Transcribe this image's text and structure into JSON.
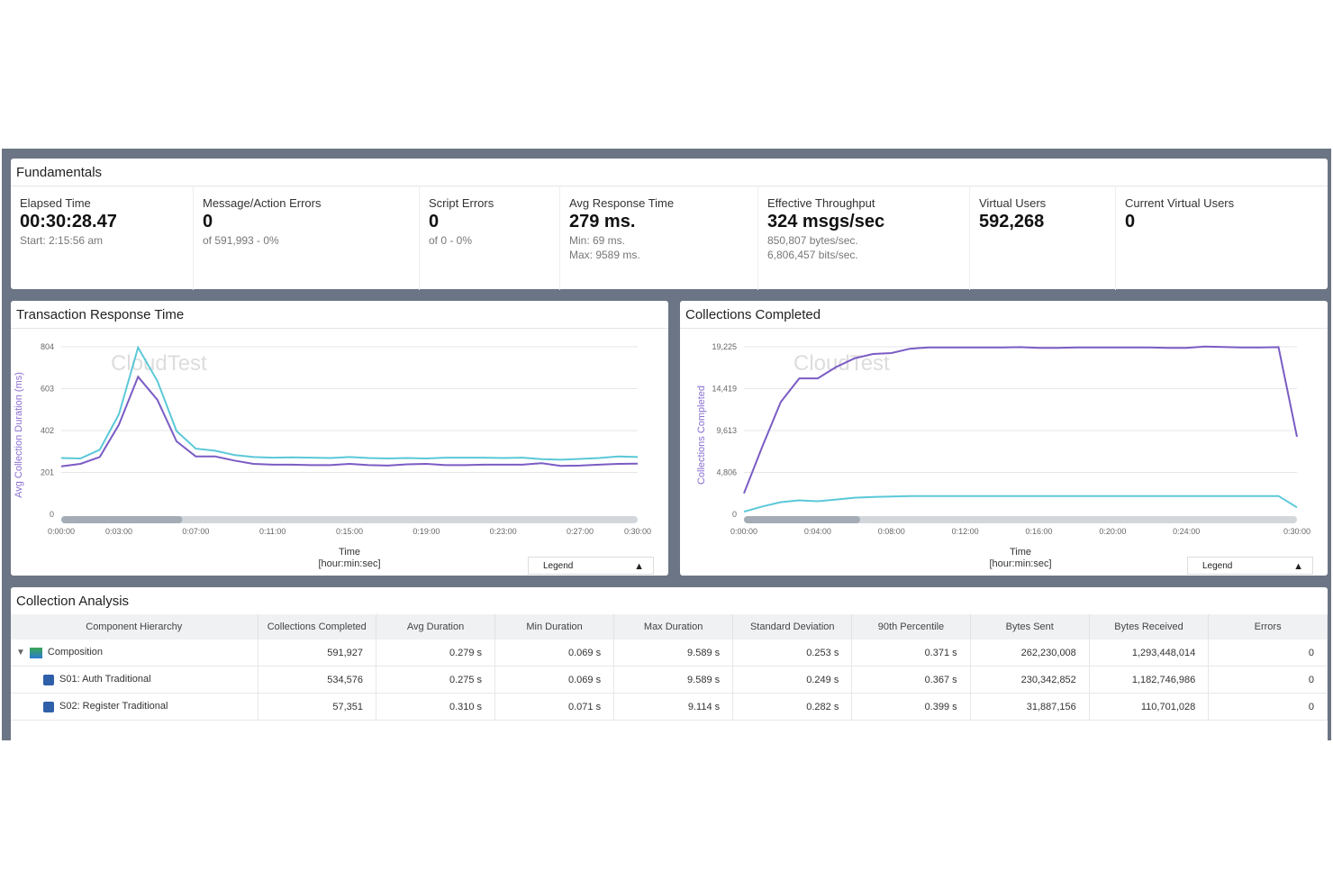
{
  "fundamentals": {
    "title": "Fundamentals",
    "stats": [
      {
        "label": "Elapsed Time",
        "value": "00:30:28.47",
        "sub": [
          "Start: 2:15:56 am"
        ]
      },
      {
        "label": "Message/Action Errors",
        "value": "0",
        "sub": [
          "of 591,993 - 0%"
        ]
      },
      {
        "label": "Script Errors",
        "value": "0",
        "sub": [
          "of 0 - 0%"
        ]
      },
      {
        "label": "Avg Response Time",
        "value": "279 ms.",
        "sub": [
          "Min: 69 ms.",
          "Max: 9589 ms."
        ]
      },
      {
        "label": "Effective Throughput",
        "value": "324 msgs/sec",
        "sub": [
          "850,807 bytes/sec.",
          "6,806,457 bits/sec."
        ]
      },
      {
        "label": "Virtual Users",
        "value": "592,268",
        "sub": []
      },
      {
        "label": "Current Virtual Users",
        "value": "0",
        "sub": []
      }
    ]
  },
  "chart_data": [
    {
      "type": "line",
      "title": "Transaction Response Time",
      "watermark": "CloudTest",
      "ylabel": "Avg Collection Duration (ms)",
      "xlabel": "Time",
      "xlabel2": "[hour:min:sec]",
      "ylim": [
        0,
        804
      ],
      "yticks": [
        "0",
        "201",
        "402",
        "603",
        "804"
      ],
      "xlim": [
        0,
        30
      ],
      "xticks": [
        {
          "v": 0,
          "t": "0:00:00"
        },
        {
          "v": 3,
          "t": "0:03:00"
        },
        {
          "v": 7,
          "t": "0:07:00"
        },
        {
          "v": 11,
          "t": "0:11:00"
        },
        {
          "v": 15,
          "t": "0:15:00"
        },
        {
          "v": 19,
          "t": "0:19:00"
        },
        {
          "v": 23,
          "t": "0:23:00"
        },
        {
          "v": 27,
          "t": "0:27:00"
        },
        {
          "v": 30,
          "t": "0:30:00"
        }
      ],
      "legend_label": "Legend",
      "series": [
        {
          "name": "series-cyan",
          "color": "#5bc8d8",
          "values": [
            270,
            268,
            310,
            480,
            800,
            640,
            400,
            315,
            305,
            285,
            275,
            272,
            273,
            272,
            270,
            275,
            270,
            268,
            270,
            268,
            272,
            272,
            272,
            270,
            272,
            265,
            262,
            266,
            270,
            278,
            275
          ]
        },
        {
          "name": "series-purple",
          "color": "#7a5cc4",
          "values": [
            230,
            242,
            275,
            430,
            660,
            550,
            350,
            278,
            278,
            258,
            242,
            238,
            238,
            236,
            236,
            242,
            236,
            234,
            240,
            242,
            236,
            236,
            238,
            238,
            238,
            245,
            232,
            234,
            238,
            242,
            243
          ]
        }
      ]
    },
    {
      "type": "line",
      "title": "Collections Completed",
      "watermark": "CloudTest",
      "ylabel": "Collections Completed",
      "xlabel": "Time",
      "xlabel2": "[hour:min:sec]",
      "ylim": [
        0,
        19225
      ],
      "yticks": [
        "0",
        "4,806",
        "9,613",
        "14,419",
        "19,225"
      ],
      "xlim": [
        0,
        30
      ],
      "xticks": [
        {
          "v": 0,
          "t": "0:00:00"
        },
        {
          "v": 4,
          "t": "0:04:00"
        },
        {
          "v": 8,
          "t": "0:08:00"
        },
        {
          "v": 12,
          "t": "0:12:00"
        },
        {
          "v": 16,
          "t": "0:16:00"
        },
        {
          "v": 20,
          "t": "0:20:00"
        },
        {
          "v": 24,
          "t": "0:24:00"
        },
        {
          "v": 30,
          "t": "0:30:00"
        }
      ],
      "legend_label": "Legend",
      "series": [
        {
          "name": "series-purple",
          "color": "#7a5cc4",
          "values": [
            2400,
            7800,
            12900,
            15600,
            15600,
            16900,
            17900,
            18400,
            18500,
            19000,
            19150,
            19150,
            19150,
            19150,
            19150,
            19180,
            19100,
            19100,
            19150,
            19150,
            19150,
            19150,
            19150,
            19100,
            19100,
            19250,
            19200,
            19150,
            19150,
            19180,
            8900
          ]
        },
        {
          "name": "series-cyan",
          "color": "#5bc8d8",
          "values": [
            300,
            900,
            1400,
            1600,
            1500,
            1700,
            1900,
            2000,
            2050,
            2100,
            2100,
            2100,
            2100,
            2100,
            2100,
            2100,
            2100,
            2100,
            2100,
            2100,
            2100,
            2100,
            2100,
            2100,
            2100,
            2100,
            2100,
            2100,
            2100,
            2100,
            800
          ]
        }
      ]
    }
  ],
  "analysis": {
    "title": "Collection Analysis",
    "columns": [
      "Component Hierarchy",
      "Collections Completed",
      "Avg Duration",
      "Min Duration",
      "Max Duration",
      "Standard Deviation",
      "90th Percentile",
      "Bytes Sent",
      "Bytes Received",
      "Errors"
    ],
    "rows": [
      [
        "Composition",
        "591,927",
        "0.279 s",
        "0.069 s",
        "9.589 s",
        "0.253 s",
        "0.371 s",
        "262,230,008",
        "1,293,448,014",
        "0"
      ],
      [
        "S01: Auth Traditional",
        "534,576",
        "0.275 s",
        "0.069 s",
        "9.589 s",
        "0.249 s",
        "0.367 s",
        "230,342,852",
        "1,182,746,986",
        "0"
      ],
      [
        "S02: Register Traditional",
        "57,351",
        "0.310 s",
        "0.071 s",
        "9.114 s",
        "0.282 s",
        "0.399 s",
        "31,887,156",
        "110,701,028",
        "0"
      ]
    ]
  }
}
